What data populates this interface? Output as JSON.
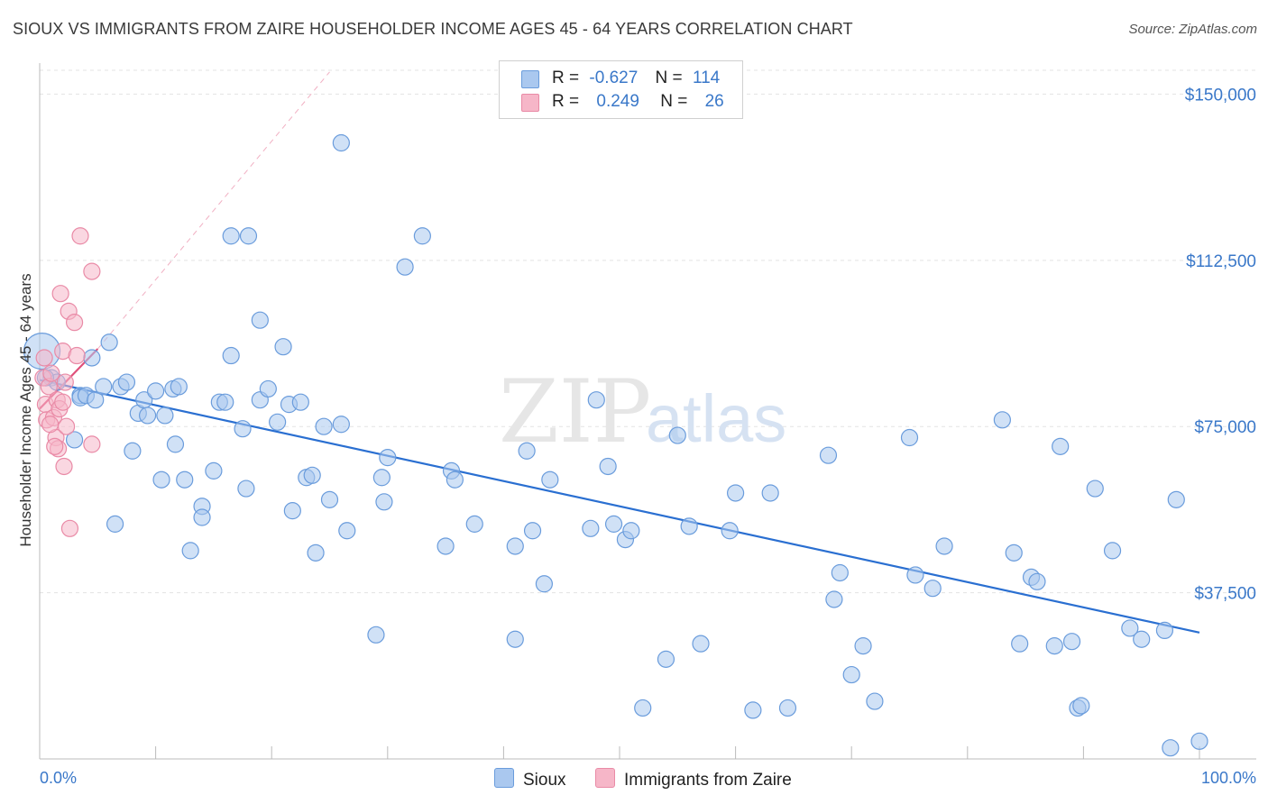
{
  "title": "SIOUX VS IMMIGRANTS FROM ZAIRE HOUSEHOLDER INCOME AGES 45 - 64 YEARS CORRELATION CHART",
  "source": "Source: ZipAtlas.com",
  "watermark": {
    "zip": "ZIP",
    "atlas": "atlas"
  },
  "legend": {
    "rows": [
      {
        "r_label": "R =",
        "r_value": "-0.627",
        "n_label": "N =",
        "n_value": "114"
      },
      {
        "r_label": "R =",
        "r_value": "0.249",
        "n_label": "N =",
        "n_value": "26"
      }
    ]
  },
  "bottom_legend": {
    "series1": "Sioux",
    "series2": "Immigrants from Zaire"
  },
  "colors": {
    "sioux_fill": "#aac8ef",
    "sioux_stroke": "#6a9cdc",
    "sioux_line": "#2a6fd1",
    "zaire_fill": "#f6b6c8",
    "zaire_stroke": "#e98aa6",
    "zaire_line": "#e0507a",
    "axis_text": "#3a78c9",
    "grid": "#e3e3e3"
  },
  "chart_data": {
    "type": "scatter",
    "title": "SIOUX VS IMMIGRANTS FROM ZAIRE HOUSEHOLDER INCOME AGES 45 - 64 YEARS CORRELATION CHART",
    "xlabel": "",
    "ylabel": "Householder Income Ages 45 - 64 years",
    "xlim": [
      0,
      100
    ],
    "ylim": [
      0,
      157000
    ],
    "x_tick_labels": [
      "0.0%",
      "100.0%"
    ],
    "y_ticks": [
      37500,
      75000,
      112500,
      150000
    ],
    "y_tick_labels": [
      "$37,500",
      "$75,000",
      "$112,500",
      "$150,000"
    ],
    "grid": true,
    "legend_position": "top-center",
    "series": [
      {
        "name": "Sioux",
        "points": [
          [
            0.2,
            92000
          ],
          [
            1.0,
            86000
          ],
          [
            1.5,
            85000
          ],
          [
            3.0,
            72000
          ],
          [
            3.5,
            82000
          ],
          [
            4.5,
            90500
          ],
          [
            3.5,
            81500
          ],
          [
            4.0,
            82000
          ],
          [
            6.0,
            94000
          ],
          [
            4.8,
            81000
          ],
          [
            5.5,
            84000
          ],
          [
            6.5,
            53000
          ],
          [
            7.0,
            84000
          ],
          [
            7.5,
            85000
          ],
          [
            8.0,
            69500
          ],
          [
            8.5,
            78000
          ],
          [
            9.0,
            81000
          ],
          [
            9.3,
            77500
          ],
          [
            10.0,
            83000
          ],
          [
            10.5,
            63000
          ],
          [
            10.8,
            77500
          ],
          [
            11.5,
            83500
          ],
          [
            11.7,
            71000
          ],
          [
            12.0,
            84000
          ],
          [
            12.5,
            63000
          ],
          [
            13.0,
            47000
          ],
          [
            14.0,
            57000
          ],
          [
            14.0,
            54500
          ],
          [
            15.0,
            65000
          ],
          [
            15.5,
            80500
          ],
          [
            16.0,
            80500
          ],
          [
            16.5,
            91000
          ],
          [
            16.5,
            118000
          ],
          [
            17.5,
            74500
          ],
          [
            17.8,
            61000
          ],
          [
            18.0,
            118000
          ],
          [
            19.0,
            81000
          ],
          [
            19.0,
            99000
          ],
          [
            19.7,
            83500
          ],
          [
            20.5,
            76000
          ],
          [
            21.0,
            93000
          ],
          [
            21.5,
            80000
          ],
          [
            21.8,
            56000
          ],
          [
            22.5,
            80500
          ],
          [
            23.0,
            63500
          ],
          [
            23.5,
            64000
          ],
          [
            23.8,
            46500
          ],
          [
            24.5,
            75000
          ],
          [
            25.0,
            58500
          ],
          [
            26.0,
            75500
          ],
          [
            26.0,
            139000
          ],
          [
            26.5,
            51500
          ],
          [
            29.0,
            28000
          ],
          [
            29.5,
            63500
          ],
          [
            29.7,
            58000
          ],
          [
            30.0,
            68000
          ],
          [
            31.5,
            111000
          ],
          [
            33.0,
            118000
          ],
          [
            35.0,
            48000
          ],
          [
            35.5,
            65000
          ],
          [
            35.8,
            63000
          ],
          [
            37.5,
            53000
          ],
          [
            41.0,
            48000
          ],
          [
            41.0,
            27000
          ],
          [
            42.0,
            69500
          ],
          [
            42.5,
            51500
          ],
          [
            43.5,
            39500
          ],
          [
            44.0,
            63000
          ],
          [
            47.5,
            52000
          ],
          [
            48.0,
            81000
          ],
          [
            49.0,
            66000
          ],
          [
            49.5,
            53000
          ],
          [
            50.5,
            49500
          ],
          [
            51.0,
            51500
          ],
          [
            54.0,
            22500
          ],
          [
            55.0,
            73000
          ],
          [
            56.0,
            52500
          ],
          [
            57.0,
            26000
          ],
          [
            59.5,
            51500
          ],
          [
            60.0,
            60000
          ],
          [
            61.5,
            11000
          ],
          [
            63.0,
            60000
          ],
          [
            68.0,
            68500
          ],
          [
            68.5,
            36000
          ],
          [
            69.0,
            42000
          ],
          [
            70.0,
            19000
          ],
          [
            71.0,
            25500
          ],
          [
            72.0,
            13000
          ],
          [
            75.0,
            72500
          ],
          [
            75.5,
            41500
          ],
          [
            77.0,
            38500
          ],
          [
            78.0,
            48000
          ],
          [
            83.0,
            76500
          ],
          [
            84.0,
            46500
          ],
          [
            84.5,
            26000
          ],
          [
            85.5,
            41000
          ],
          [
            86.0,
            40000
          ],
          [
            87.5,
            25500
          ],
          [
            88.0,
            70500
          ],
          [
            89.0,
            26500
          ],
          [
            89.5,
            11500
          ],
          [
            89.8,
            12000
          ],
          [
            91.0,
            61000
          ],
          [
            92.5,
            47000
          ],
          [
            94.0,
            29500
          ],
          [
            95.0,
            27000
          ],
          [
            97.0,
            29000
          ],
          [
            97.5,
            2500
          ],
          [
            98.0,
            58500
          ],
          [
            100.0,
            4000
          ],
          [
            52.0,
            11500
          ],
          [
            43.0,
            150000
          ],
          [
            64.5,
            11500
          ],
          [
            0.5,
            86000
          ]
        ]
      },
      {
        "name": "Immigrants from Zaire",
        "points": [
          [
            0.3,
            86000
          ],
          [
            0.5,
            80000
          ],
          [
            0.6,
            76500
          ],
          [
            0.8,
            84000
          ],
          [
            1.0,
            87000
          ],
          [
            1.2,
            77000
          ],
          [
            1.4,
            72500
          ],
          [
            1.5,
            81000
          ],
          [
            1.6,
            70000
          ],
          [
            1.7,
            79000
          ],
          [
            1.8,
            105000
          ],
          [
            2.0,
            80500
          ],
          [
            2.0,
            92000
          ],
          [
            2.1,
            66000
          ],
          [
            2.2,
            85000
          ],
          [
            2.3,
            75000
          ],
          [
            2.5,
            101000
          ],
          [
            2.6,
            52000
          ],
          [
            3.0,
            98500
          ],
          [
            3.2,
            91000
          ],
          [
            3.5,
            118000
          ],
          [
            4.5,
            110000
          ],
          [
            4.5,
            71000
          ],
          [
            0.4,
            90500
          ],
          [
            0.9,
            75500
          ],
          [
            1.3,
            70500
          ]
        ]
      }
    ],
    "trend_lines": [
      {
        "series": "Sioux",
        "from": [
          0,
          85500
        ],
        "to": [
          100,
          28500
        ]
      },
      {
        "series": "Immigrants from Zaire",
        "from": [
          0,
          79000
        ],
        "to": [
          5,
          92500
        ]
      },
      {
        "series": "Immigrants from Zaire extrapolated",
        "from": [
          5,
          92500
        ],
        "to": [
          25,
          155000
        ]
      }
    ]
  }
}
